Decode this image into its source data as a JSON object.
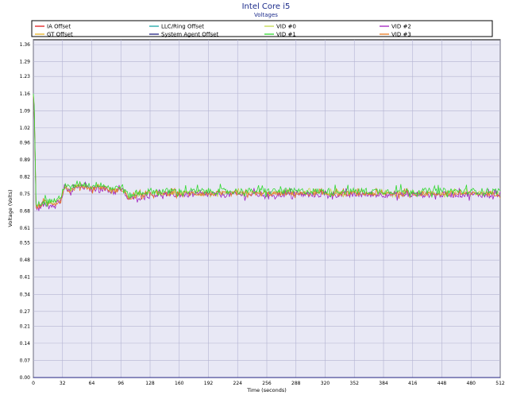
{
  "chart_data": {
    "type": "line",
    "title": "Intel Core i5",
    "subtitle": "Voltages",
    "xlabel": "Time (seconds)",
    "ylabel": "Voltage (Volts)",
    "xlim": [
      0,
      512
    ],
    "ylim": [
      0.0,
      1.38
    ],
    "xticks": [
      0,
      32,
      64,
      96,
      128,
      160,
      192,
      224,
      256,
      288,
      320,
      352,
      384,
      416,
      448,
      480,
      512
    ],
    "yticks": [
      "0.00",
      "0.07",
      "0.14",
      "0.21",
      "0.27",
      "0.34",
      "0.41",
      "0.48",
      "0.55",
      "0.61",
      "0.68",
      "0.75",
      "0.82",
      "0.89",
      "0.96",
      "1.02",
      "1.09",
      "1.16",
      "1.23",
      "1.29",
      "1.36"
    ],
    "grid": true,
    "legend_position": "top",
    "colors": {
      "plot_background": "#e8e8f5",
      "grid": "#b3b3d1",
      "title": "#1a2a8a",
      "frame": "#000000"
    },
    "series": [
      {
        "name": "IA Offset",
        "color": "#e01818",
        "values": []
      },
      {
        "name": "LLC/Ring Offset",
        "color": "#1aa3a3",
        "values": []
      },
      {
        "name": "VID #0",
        "color": "#c2d84a",
        "values": []
      },
      {
        "name": "VID #2",
        "color": "#a020c0",
        "values": []
      },
      {
        "name": "GT Offset",
        "color": "#e8b020",
        "values": []
      },
      {
        "name": "System Agent Offset",
        "color": "#202080",
        "values": []
      },
      {
        "name": "VID #1",
        "color": "#30d830",
        "values": []
      },
      {
        "name": "VID #3",
        "color": "#e87a20",
        "values": []
      }
    ],
    "vid_profile": [
      [
        0,
        1.15
      ],
      [
        1,
        1.1
      ],
      [
        2,
        0.9
      ],
      [
        3,
        0.7
      ],
      [
        4,
        0.69
      ],
      [
        10,
        0.71
      ],
      [
        20,
        0.71
      ],
      [
        30,
        0.72
      ],
      [
        34,
        0.78
      ],
      [
        40,
        0.76
      ],
      [
        48,
        0.78
      ],
      [
        56,
        0.78
      ],
      [
        64,
        0.77
      ],
      [
        72,
        0.78
      ],
      [
        80,
        0.77
      ],
      [
        88,
        0.76
      ],
      [
        96,
        0.77
      ],
      [
        100,
        0.76
      ],
      [
        104,
        0.73
      ],
      [
        112,
        0.74
      ],
      [
        128,
        0.75
      ],
      [
        160,
        0.75
      ],
      [
        192,
        0.75
      ],
      [
        224,
        0.75
      ],
      [
        256,
        0.75
      ],
      [
        288,
        0.75
      ],
      [
        320,
        0.75
      ],
      [
        352,
        0.75
      ],
      [
        384,
        0.75
      ],
      [
        416,
        0.75
      ],
      [
        448,
        0.75
      ],
      [
        480,
        0.75
      ],
      [
        512,
        0.75
      ]
    ]
  }
}
